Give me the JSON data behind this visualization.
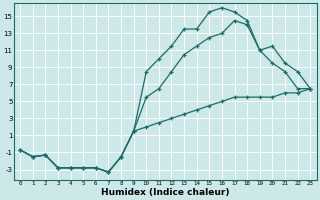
{
  "xlabel": "Humidex (Indice chaleur)",
  "bg_color": "#cde8e8",
  "grid_color": "#b8d8d8",
  "line_color": "#1a6b6b",
  "xlim": [
    -0.5,
    23.5
  ],
  "ylim": [
    -4.2,
    16.5
  ],
  "yticks": [
    -3,
    -1,
    1,
    3,
    5,
    7,
    9,
    11,
    13,
    15
  ],
  "xticks": [
    0,
    1,
    2,
    3,
    4,
    5,
    6,
    7,
    8,
    9,
    10,
    11,
    12,
    13,
    14,
    15,
    16,
    17,
    18,
    19,
    20,
    21,
    22,
    23
  ],
  "line_bottom_x": [
    0,
    1,
    2,
    3,
    4,
    5,
    6,
    7,
    8,
    9,
    10,
    11,
    12,
    13,
    14,
    15,
    16,
    17,
    18,
    19,
    20,
    21,
    22,
    23
  ],
  "line_bottom_y": [
    -0.7,
    -1.5,
    -1.3,
    -2.8,
    -2.8,
    -2.8,
    -2.8,
    -3.3,
    -1.5,
    1.5,
    2.0,
    2.5,
    3.0,
    3.5,
    4.0,
    4.5,
    5.0,
    5.5,
    5.5,
    5.5,
    5.5,
    6.0,
    6.0,
    6.5
  ],
  "line_top_x": [
    0,
    1,
    2,
    3,
    4,
    5,
    6,
    7,
    8,
    9,
    10,
    11,
    12,
    13,
    14,
    15,
    16,
    17,
    18,
    19,
    20,
    21,
    22,
    23
  ],
  "line_top_y": [
    -0.7,
    -1.5,
    -1.3,
    -2.8,
    -2.8,
    -2.8,
    -2.8,
    -3.3,
    -1.5,
    1.5,
    8.5,
    10.0,
    11.5,
    13.5,
    13.5,
    15.5,
    16.0,
    15.5,
    14.5,
    11.0,
    9.5,
    8.5,
    6.5,
    6.5
  ],
  "line_mid_x": [
    0,
    1,
    2,
    3,
    4,
    5,
    6,
    7,
    8,
    9,
    10,
    11,
    12,
    13,
    14,
    15,
    16,
    17,
    18,
    19,
    20,
    21,
    22,
    23
  ],
  "line_mid_y": [
    -0.7,
    -1.5,
    -1.3,
    -2.8,
    -2.8,
    -2.8,
    -2.8,
    -3.3,
    -1.5,
    1.5,
    5.5,
    6.5,
    8.5,
    10.5,
    11.5,
    12.5,
    13.0,
    14.5,
    14.0,
    11.0,
    11.5,
    9.5,
    8.5,
    6.5
  ]
}
